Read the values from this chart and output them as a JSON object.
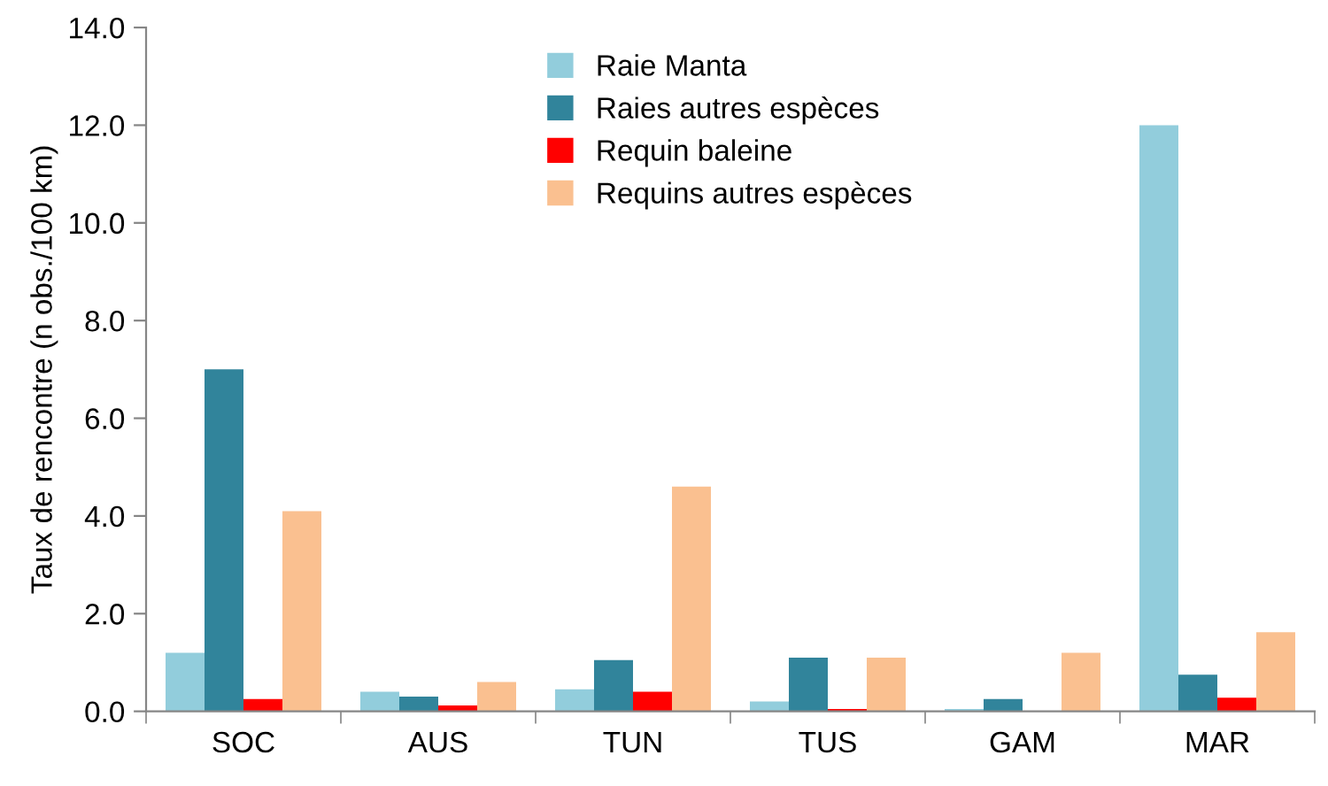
{
  "chart_data": {
    "type": "bar",
    "ylabel": "Taux de rencontre (n obs./100 km)",
    "categories": [
      "SOC",
      "AUS",
      "TUN",
      "TUS",
      "GAM",
      "MAR"
    ],
    "series": [
      {
        "name": "Raie Manta",
        "color": "#92cddc",
        "values": [
          1.2,
          0.4,
          0.45,
          0.2,
          0.05,
          12.0
        ]
      },
      {
        "name": "Raies autres espèces",
        "color": "#31849b",
        "values": [
          7.0,
          0.3,
          1.05,
          1.1,
          0.25,
          0.75
        ]
      },
      {
        "name": "Requin baleine",
        "color": "#ff0000",
        "values": [
          0.25,
          0.12,
          0.4,
          0.05,
          0,
          0.28
        ]
      },
      {
        "name": "Requins autres espèces",
        "color": "#fac090",
        "values": [
          4.1,
          0.6,
          4.6,
          1.1,
          1.2,
          1.62
        ]
      }
    ],
    "ylim": [
      0,
      14
    ],
    "yticks": [
      {
        "value": 0,
        "label": "0.0"
      },
      {
        "value": 2,
        "label": "2.0"
      },
      {
        "value": 4,
        "label": "4.0"
      },
      {
        "value": 6,
        "label": "6.0"
      },
      {
        "value": 8,
        "label": "8.0"
      },
      {
        "value": 10,
        "label": "10.0"
      },
      {
        "value": 12,
        "label": "12.0"
      },
      {
        "value": 14,
        "label": "14.0"
      }
    ],
    "grid": false,
    "legend": "top"
  }
}
